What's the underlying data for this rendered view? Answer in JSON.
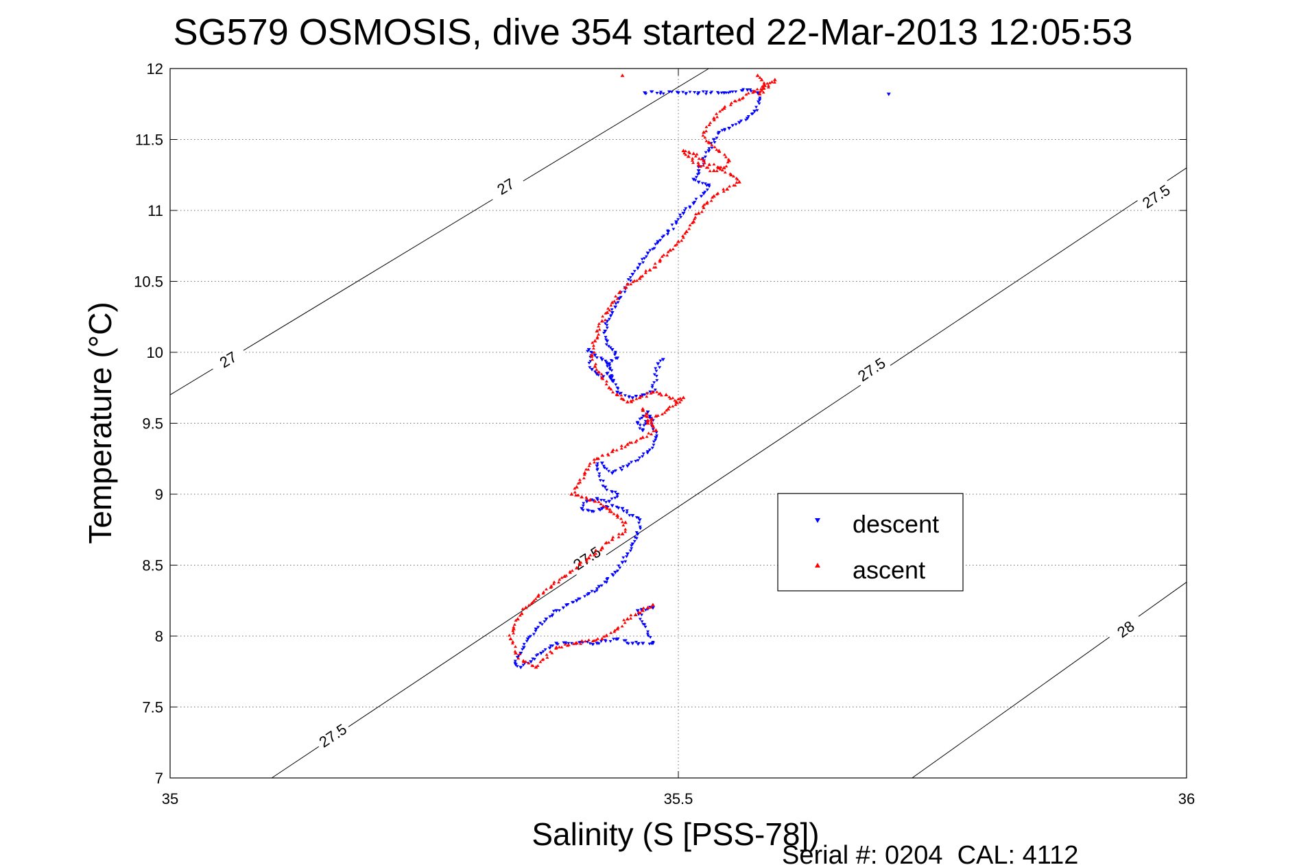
{
  "chart_data": {
    "type": "scatter",
    "title": "SG579 OSMOSIS, dive 354 started 22-Mar-2013 12:05:53",
    "xlabel": "Salinity (S [PSS-78])",
    "ylabel": "Temperature (°C)",
    "footer": "Serial #: 0204  CAL: 4112",
    "xlim": [
      35,
      36
    ],
    "ylim": [
      7,
      12
    ],
    "xticks": [
      35,
      35.5,
      36
    ],
    "xtick_labels": [
      "35",
      "35.5",
      "36"
    ],
    "yticks": [
      7,
      7.5,
      8,
      8.5,
      9,
      9.5,
      10,
      10.5,
      11,
      11.5,
      12
    ],
    "ytick_labels": [
      "7",
      "7.5",
      "8",
      "8.5",
      "9",
      "9.5",
      "10",
      "10.5",
      "11",
      "11.5",
      "12"
    ],
    "grid": true,
    "legend_position": "center-right",
    "density_contours": [
      {
        "value": "27",
        "points": [
          [
            35.0,
            9.7
          ],
          [
            35.53,
            12.0
          ]
        ],
        "labels": [
          [
            35.057,
            9.95
          ],
          [
            35.33,
            11.17
          ]
        ]
      },
      {
        "value": "27.5",
        "points": [
          [
            35.1,
            7.0
          ],
          [
            36.0,
            11.3
          ]
        ],
        "labels": [
          [
            35.16,
            7.3
          ],
          [
            35.41,
            8.55
          ],
          [
            35.69,
            9.88
          ],
          [
            35.97,
            11.1
          ]
        ]
      },
      {
        "value": "28",
        "points": [
          [
            35.73,
            7.0
          ],
          [
            36.0,
            8.38
          ]
        ],
        "labels": [
          [
            35.94,
            8.05
          ]
        ]
      }
    ],
    "series": [
      {
        "name": "descent",
        "color": "#0000ff",
        "marker": "triangle-down",
        "x": [
          35.467,
          35.5,
          35.52,
          35.545,
          35.568,
          35.578,
          35.58,
          35.575,
          35.568,
          35.56,
          35.55,
          35.54,
          35.535,
          35.53,
          35.525,
          35.52,
          35.515,
          35.52,
          35.53,
          35.525,
          35.515,
          35.505,
          35.498,
          35.49,
          35.48,
          35.47,
          35.462,
          35.455,
          35.448,
          35.442,
          35.438,
          35.435,
          35.43,
          35.428,
          35.43,
          35.435,
          35.44,
          35.432,
          35.425,
          35.418,
          35.412,
          35.415,
          35.425,
          35.43,
          35.435,
          35.43,
          35.44,
          35.455,
          35.465,
          35.475,
          35.48,
          35.485,
          35.47,
          35.46,
          35.465,
          35.472,
          35.478,
          35.47,
          35.45,
          35.435,
          35.425,
          35.42,
          35.428,
          35.44,
          35.432,
          35.42,
          35.41,
          35.405,
          35.415,
          35.425,
          35.435,
          35.445,
          35.455,
          35.462,
          35.46,
          35.455,
          35.45,
          35.445,
          35.438,
          35.43,
          35.422,
          35.412,
          35.4,
          35.39,
          35.38,
          35.37,
          35.36,
          35.352,
          35.348,
          35.345,
          35.342,
          35.34,
          35.345,
          35.355,
          35.365,
          35.38,
          35.42,
          35.44,
          35.455,
          35.465,
          35.475,
          35.46,
          35.475,
          35.707
        ],
        "y": [
          11.83,
          11.83,
          11.83,
          11.83,
          11.85,
          11.83,
          11.78,
          11.7,
          11.65,
          11.62,
          11.58,
          11.55,
          11.5,
          11.42,
          11.35,
          11.28,
          11.22,
          11.2,
          11.18,
          11.12,
          11.05,
          10.98,
          10.92,
          10.85,
          10.78,
          10.7,
          10.62,
          10.55,
          10.45,
          10.38,
          10.32,
          10.28,
          10.22,
          10.15,
          10.08,
          10.02,
          9.96,
          9.92,
          9.95,
          9.98,
          10.02,
          9.88,
          9.82,
          9.85,
          9.8,
          9.92,
          9.72,
          9.68,
          9.7,
          9.72,
          9.92,
          9.95,
          9.58,
          9.5,
          9.45,
          9.55,
          9.4,
          9.3,
          9.2,
          9.15,
          9.22,
          9.2,
          9.05,
          9.0,
          8.95,
          8.97,
          8.95,
          8.9,
          8.88,
          8.9,
          8.92,
          8.9,
          8.85,
          8.82,
          8.72,
          8.65,
          8.58,
          8.52,
          8.45,
          8.4,
          8.35,
          8.3,
          8.25,
          8.22,
          8.18,
          8.12,
          8.05,
          7.98,
          7.92,
          7.88,
          7.85,
          7.8,
          7.78,
          7.82,
          7.88,
          7.95,
          7.95,
          7.98,
          7.95,
          7.95,
          7.95,
          8.18,
          8.2,
          11.82
        ]
      },
      {
        "name": "ascent",
        "color": "#ff0000",
        "marker": "triangle-up",
        "x": [
          35.578,
          35.582,
          35.585,
          35.58,
          35.595,
          35.56,
          35.545,
          35.535,
          35.525,
          35.53,
          35.54,
          35.55,
          35.545,
          35.535,
          35.52,
          35.51,
          35.505,
          35.515,
          35.525,
          35.54,
          35.552,
          35.56,
          35.548,
          35.535,
          35.528,
          35.52,
          35.515,
          35.508,
          35.5,
          35.492,
          35.482,
          35.472,
          35.462,
          35.45,
          35.442,
          35.435,
          35.43,
          35.425,
          35.42,
          35.418,
          35.415,
          35.418,
          35.425,
          35.432,
          35.44,
          35.45,
          35.462,
          35.475,
          35.488,
          35.498,
          35.505,
          35.49,
          35.478,
          35.47,
          35.465,
          35.47,
          35.478,
          35.465,
          35.45,
          35.435,
          35.42,
          35.408,
          35.4,
          35.395,
          35.405,
          35.418,
          35.43,
          35.44,
          35.448,
          35.445,
          35.435,
          35.425,
          35.412,
          35.4,
          35.388,
          35.375,
          35.362,
          35.35,
          35.342,
          35.338,
          35.335,
          35.34,
          35.348,
          35.36,
          35.38,
          35.4,
          35.425,
          35.44,
          35.45,
          35.458,
          35.465,
          35.47,
          35.475,
          35.445
        ],
        "y": [
          11.95,
          11.92,
          11.88,
          11.82,
          11.92,
          11.78,
          11.72,
          11.65,
          11.55,
          11.48,
          11.42,
          11.35,
          11.3,
          11.28,
          11.32,
          11.38,
          11.42,
          11.4,
          11.35,
          11.3,
          11.25,
          11.2,
          11.15,
          11.1,
          11.05,
          10.98,
          10.92,
          10.85,
          10.78,
          10.72,
          10.65,
          10.58,
          10.52,
          10.48,
          10.42,
          10.35,
          10.28,
          10.22,
          10.15,
          10.08,
          9.98,
          9.9,
          9.82,
          9.75,
          9.7,
          9.65,
          9.68,
          9.72,
          9.7,
          9.65,
          9.68,
          9.6,
          9.55,
          9.5,
          9.6,
          9.52,
          9.45,
          9.4,
          9.35,
          9.3,
          9.25,
          9.15,
          9.05,
          9.0,
          8.98,
          8.95,
          8.9,
          8.85,
          8.8,
          8.72,
          8.68,
          8.62,
          8.55,
          8.48,
          8.42,
          8.35,
          8.28,
          8.2,
          8.12,
          8.05,
          7.98,
          7.88,
          7.82,
          7.78,
          7.92,
          7.95,
          7.98,
          8.05,
          8.12,
          8.15,
          8.18,
          8.2,
          8.22,
          11.95
        ]
      }
    ]
  }
}
